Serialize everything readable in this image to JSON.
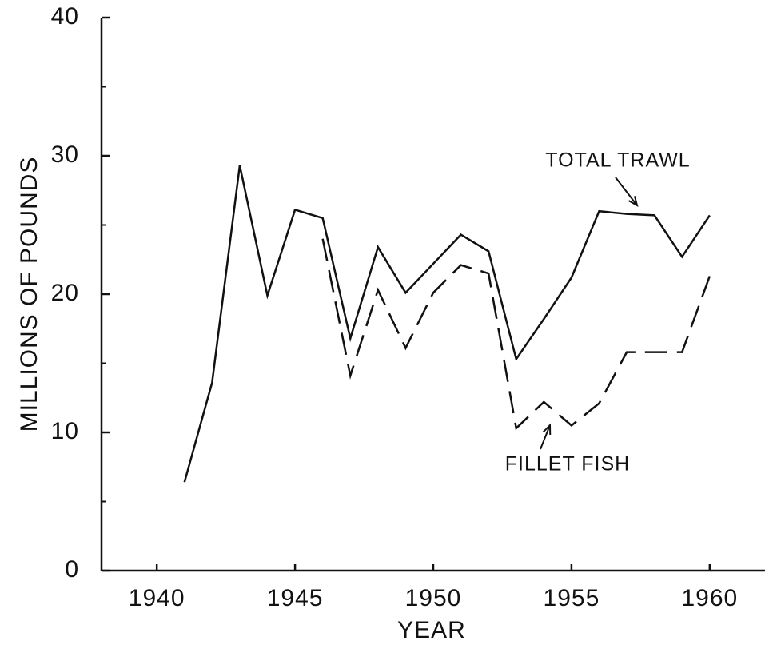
{
  "chart_data": {
    "type": "line",
    "x_label": "YEAR",
    "y_label": "MILLIONS OF POUNDS",
    "x": [
      1941,
      1942,
      1943,
      1944,
      1945,
      1946,
      1947,
      1948,
      1949,
      1950,
      1951,
      1952,
      1953,
      1954,
      1955,
      1956,
      1957,
      1958,
      1959,
      1960
    ],
    "series": [
      {
        "name": "TOTAL TRAWL",
        "color": "#111111",
        "dash": "solid",
        "values": [
          6.4,
          13.6,
          29.3,
          19.9,
          26.1,
          25.5,
          16.8,
          23.4,
          20.1,
          22.2,
          24.3,
          23.1,
          15.3,
          18.2,
          21.2,
          26.0,
          25.8,
          25.7,
          22.7,
          25.7
        ]
      },
      {
        "name": "FILLET FISH",
        "color": "#111111",
        "dash": "dashed",
        "values": [
          null,
          null,
          null,
          null,
          null,
          24,
          14.1,
          20.3,
          16.1,
          20.1,
          22.1,
          21.5,
          10.3,
          12.2,
          10.5,
          12.1,
          15.8,
          15.8,
          15.8,
          21.3
        ]
      }
    ],
    "xlim": [
      1938,
      1962
    ],
    "xticks": [
      1940,
      1945,
      1950,
      1955,
      1960
    ],
    "ylim": [
      0,
      40
    ],
    "yticks": [
      0,
      10,
      20,
      30,
      40
    ],
    "yminorticks": [
      5,
      15,
      25,
      35
    ],
    "grid": false
  }
}
